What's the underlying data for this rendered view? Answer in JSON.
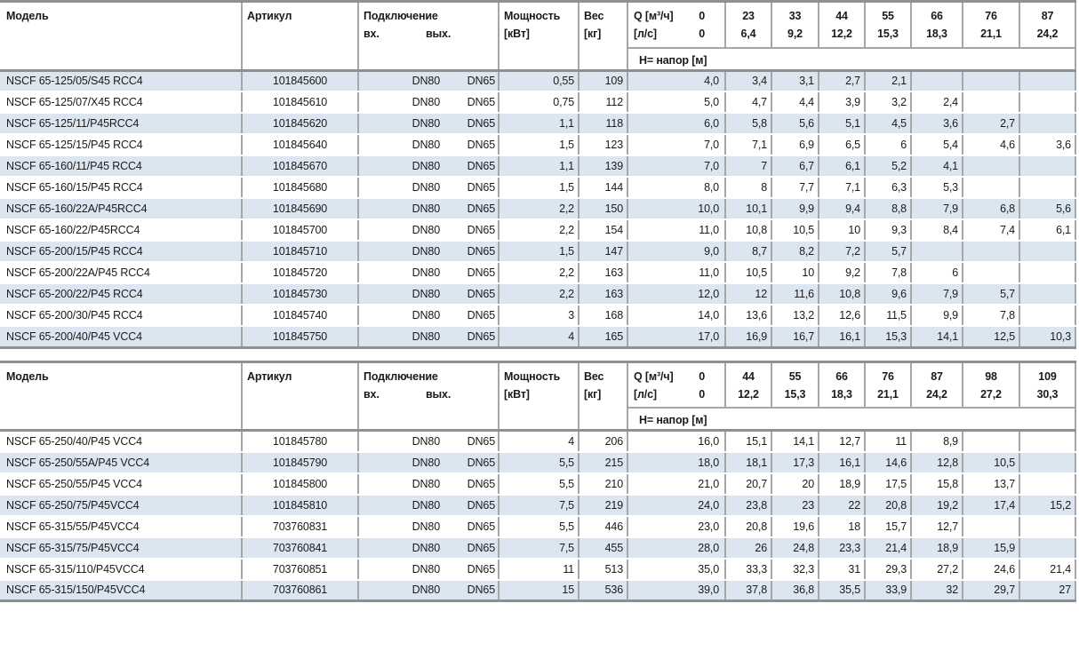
{
  "labels": {
    "model": "Модель",
    "article": "Артикул",
    "connection": "Подключение",
    "inlet": "вх.",
    "outlet": "вых.",
    "power_line1": "Мощность",
    "power_line2": "[кВт]",
    "weight_line1": "Вес",
    "weight_line2": "[кг]",
    "q_label": "Q [м³/ч]",
    "q_zero": "0",
    "ls_label": "[л/с]",
    "ls_zero": "0",
    "head_label": "H= напор [м]"
  },
  "colors": {
    "stripe": "#dce6f1",
    "grid": "#a6a6a6",
    "rule": "#8f8f8f",
    "text": "#1a1a1a"
  },
  "tables": [
    {
      "stripe": "odd",
      "flows_m3h": [
        "23",
        "33",
        "44",
        "55",
        "66",
        "76",
        "87"
      ],
      "flows_ls": [
        "6,4",
        "9,2",
        "12,2",
        "15,3",
        "18,3",
        "21,1",
        "24,2"
      ],
      "rows": [
        {
          "model": "NSCF 65-125/05/S45 RCC4",
          "article": "101845600",
          "inlet": "DN80",
          "outlet": "DN65",
          "power": "0,55",
          "weight": "109",
          "heads": [
            "4,0",
            "3,4",
            "3,1",
            "2,7",
            "2,1",
            "",
            "",
            ""
          ]
        },
        {
          "model": "NSCF 65-125/07/X45 RCC4",
          "article": "101845610",
          "inlet": "DN80",
          "outlet": "DN65",
          "power": "0,75",
          "weight": "112",
          "heads": [
            "5,0",
            "4,7",
            "4,4",
            "3,9",
            "3,2",
            "2,4",
            "",
            ""
          ]
        },
        {
          "model": "NSCF 65-125/11/P45RCC4",
          "article": "101845620",
          "inlet": "DN80",
          "outlet": "DN65",
          "power": "1,1",
          "weight": "118",
          "heads": [
            "6,0",
            "5,8",
            "5,6",
            "5,1",
            "4,5",
            "3,6",
            "2,7",
            ""
          ]
        },
        {
          "model": "NSCF 65-125/15/P45 RCC4",
          "article": "101845640",
          "inlet": "DN80",
          "outlet": "DN65",
          "power": "1,5",
          "weight": "123",
          "heads": [
            "7,0",
            "7,1",
            "6,9",
            "6,5",
            "6",
            "5,4",
            "4,6",
            "3,6"
          ]
        },
        {
          "model": "NSCF 65-160/11/P45 RCC4",
          "article": "101845670",
          "inlet": "DN80",
          "outlet": "DN65",
          "power": "1,1",
          "weight": "139",
          "heads": [
            "7,0",
            "7",
            "6,7",
            "6,1",
            "5,2",
            "4,1",
            "",
            ""
          ]
        },
        {
          "model": "NSCF 65-160/15/P45 RCC4",
          "article": "101845680",
          "inlet": "DN80",
          "outlet": "DN65",
          "power": "1,5",
          "weight": "144",
          "heads": [
            "8,0",
            "8",
            "7,7",
            "7,1",
            "6,3",
            "5,3",
            "",
            ""
          ]
        },
        {
          "model": "NSCF 65-160/22A/P45RCC4",
          "article": "101845690",
          "inlet": "DN80",
          "outlet": "DN65",
          "power": "2,2",
          "weight": "150",
          "heads": [
            "10,0",
            "10,1",
            "9,9",
            "9,4",
            "8,8",
            "7,9",
            "6,8",
            "5,6"
          ]
        },
        {
          "model": "NSCF 65-160/22/P45RCC4",
          "article": "101845700",
          "inlet": "DN80",
          "outlet": "DN65",
          "power": "2,2",
          "weight": "154",
          "heads": [
            "11,0",
            "10,8",
            "10,5",
            "10",
            "9,3",
            "8,4",
            "7,4",
            "6,1"
          ]
        },
        {
          "model": "NSCF 65-200/15/P45 RCC4",
          "article": "101845710",
          "inlet": "DN80",
          "outlet": "DN65",
          "power": "1,5",
          "weight": "147",
          "heads": [
            "9,0",
            "8,7",
            "8,2",
            "7,2",
            "5,7",
            "",
            "",
            ""
          ]
        },
        {
          "model": "NSCF 65-200/22A/P45 RCC4",
          "article": "101845720",
          "inlet": "DN80",
          "outlet": "DN65",
          "power": "2,2",
          "weight": "163",
          "heads": [
            "11,0",
            "10,5",
            "10",
            "9,2",
            "7,8",
            "6",
            "",
            ""
          ]
        },
        {
          "model": "NSCF 65-200/22/P45 RCC4",
          "article": "101845730",
          "inlet": "DN80",
          "outlet": "DN65",
          "power": "2,2",
          "weight": "163",
          "heads": [
            "12,0",
            "12",
            "11,6",
            "10,8",
            "9,6",
            "7,9",
            "5,7",
            ""
          ]
        },
        {
          "model": "NSCF 65-200/30/P45 RCC4",
          "article": "101845740",
          "inlet": "DN80",
          "outlet": "DN65",
          "power": "3",
          "weight": "168",
          "heads": [
            "14,0",
            "13,6",
            "13,2",
            "12,6",
            "11,5",
            "9,9",
            "7,8",
            ""
          ]
        },
        {
          "model": "NSCF 65-200/40/P45 VCC4",
          "article": "101845750",
          "inlet": "DN80",
          "outlet": "DN65",
          "power": "4",
          "weight": "165",
          "heads": [
            "17,0",
            "16,9",
            "16,7",
            "16,1",
            "15,3",
            "14,1",
            "12,5",
            "10,3"
          ]
        }
      ]
    },
    {
      "stripe": "even",
      "flows_m3h": [
        "44",
        "55",
        "66",
        "76",
        "87",
        "98",
        "109"
      ],
      "flows_ls": [
        "12,2",
        "15,3",
        "18,3",
        "21,1",
        "24,2",
        "27,2",
        "30,3"
      ],
      "rows": [
        {
          "model": "NSCF 65-250/40/P45 VCC4",
          "article": "101845780",
          "inlet": "DN80",
          "outlet": "DN65",
          "power": "4",
          "weight": "206",
          "heads": [
            "16,0",
            "15,1",
            "14,1",
            "12,7",
            "11",
            "8,9",
            "",
            ""
          ]
        },
        {
          "model": "NSCF 65-250/55A/P45 VCC4",
          "article": "101845790",
          "inlet": "DN80",
          "outlet": "DN65",
          "power": "5,5",
          "weight": "215",
          "heads": [
            "18,0",
            "18,1",
            "17,3",
            "16,1",
            "14,6",
            "12,8",
            "10,5",
            ""
          ]
        },
        {
          "model": "NSCF 65-250/55/P45 VCC4",
          "article": "101845800",
          "inlet": "DN80",
          "outlet": "DN65",
          "power": "5,5",
          "weight": "210",
          "heads": [
            "21,0",
            "20,7",
            "20",
            "18,9",
            "17,5",
            "15,8",
            "13,7",
            ""
          ]
        },
        {
          "model": "NSCF 65-250/75/P45VCC4",
          "article": "101845810",
          "inlet": "DN80",
          "outlet": "DN65",
          "power": "7,5",
          "weight": "219",
          "heads": [
            "24,0",
            "23,8",
            "23",
            "22",
            "20,8",
            "19,2",
            "17,4",
            "15,2"
          ]
        },
        {
          "model": "NSCF 65-315/55/P45VCC4",
          "article": "703760831",
          "inlet": "DN80",
          "outlet": "DN65",
          "power": "5,5",
          "weight": "446",
          "heads": [
            "23,0",
            "20,8",
            "19,6",
            "18",
            "15,7",
            "12,7",
            "",
            ""
          ]
        },
        {
          "model": "NSCF 65-315/75/P45VCC4",
          "article": "703760841",
          "inlet": "DN80",
          "outlet": "DN65",
          "power": "7,5",
          "weight": "455",
          "heads": [
            "28,0",
            "26",
            "24,8",
            "23,3",
            "21,4",
            "18,9",
            "15,9",
            ""
          ]
        },
        {
          "model": "NSCF 65-315/110/P45VCC4",
          "article": "703760851",
          "inlet": "DN80",
          "outlet": "DN65",
          "power": "11",
          "weight": "513",
          "heads": [
            "35,0",
            "33,3",
            "32,3",
            "31",
            "29,3",
            "27,2",
            "24,6",
            "21,4"
          ]
        },
        {
          "model": "NSCF 65-315/150/P45VCC4",
          "article": "703760861",
          "inlet": "DN80",
          "outlet": "DN65",
          "power": "15",
          "weight": "536",
          "heads": [
            "39,0",
            "37,8",
            "36,8",
            "35,5",
            "33,9",
            "32",
            "29,7",
            "27"
          ]
        }
      ]
    }
  ]
}
